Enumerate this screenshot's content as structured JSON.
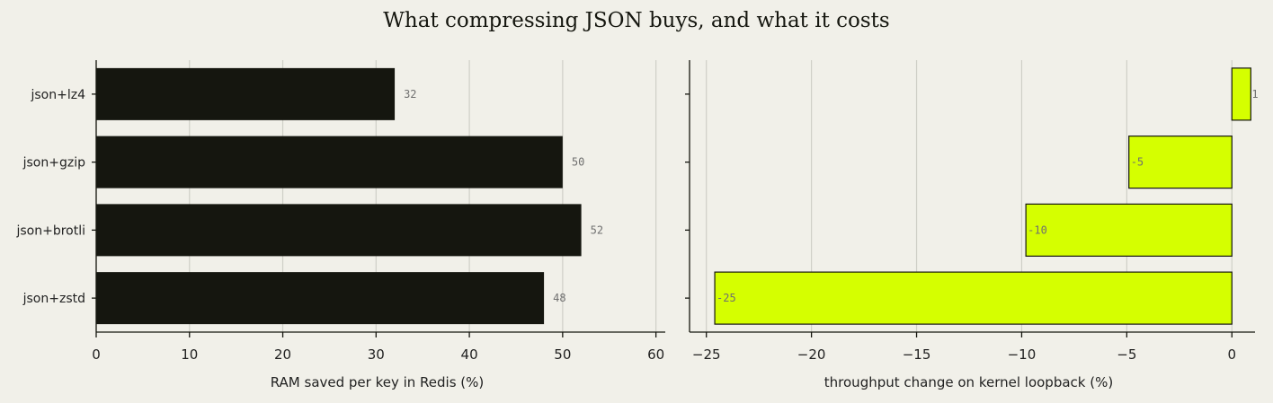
{
  "chart_data": [
    {
      "type": "bar",
      "orientation": "horizontal",
      "title": "What compressing JSON buys, and what it costs",
      "categories": [
        "json+lz4",
        "json+gzip",
        "json+brotli",
        "json+zstd"
      ],
      "values": [
        32,
        50,
        52,
        48
      ],
      "data_labels": [
        "32",
        "50",
        "52",
        "48"
      ],
      "xlabel": "RAM saved per key in Redis (%)",
      "ylabel": "",
      "xlim": [
        0,
        61
      ],
      "xticks": [
        0,
        10,
        20,
        30,
        40,
        50,
        60
      ],
      "grid": true,
      "color": "#15160f"
    },
    {
      "type": "bar",
      "orientation": "horizontal",
      "categories": [
        "json+lz4",
        "json+gzip",
        "json+brotli",
        "json+zstd"
      ],
      "values": [
        0.9,
        -4.9,
        -9.8,
        -24.6
      ],
      "data_labels": [
        "1",
        "-5",
        "-10",
        "-25"
      ],
      "xlabel": "throughput change on kernel loopback (%)",
      "ylabel": "",
      "xlim": [
        -25.8,
        1.1
      ],
      "xticks": [
        -25,
        -20,
        -15,
        -10,
        -5,
        0
      ],
      "grid": true,
      "color": "#d5ff00"
    }
  ]
}
